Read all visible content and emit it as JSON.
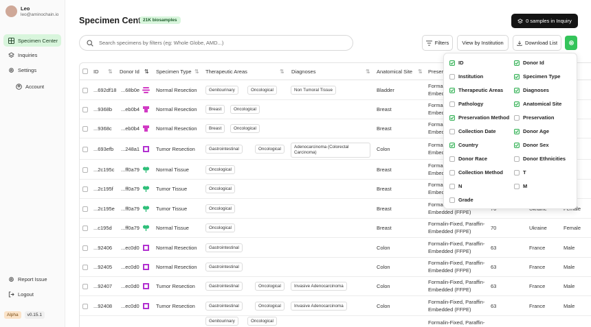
{
  "user": {
    "name": "Leo",
    "email": "leo@aminochain.io"
  },
  "nav": [
    {
      "label": "Specimen Center",
      "icon": "grid-icon",
      "active": true
    },
    {
      "label": "Inquiries",
      "icon": "layers-icon"
    },
    {
      "label": "Settings",
      "icon": "gear-icon"
    },
    {
      "label": "Account",
      "icon": "user-circle-icon"
    }
  ],
  "nav_bottom": [
    {
      "label": "Report Issue",
      "icon": "gear-icon"
    },
    {
      "label": "Logout",
      "icon": "logout-icon"
    }
  ],
  "footer": {
    "tag": "Alpha",
    "version": "v0.15.1"
  },
  "header": {
    "title": "Specimen Center",
    "badge": "21K biosamples",
    "inquiry_button": "0 samples in Inquiry"
  },
  "toolbar": {
    "search_placeholder": "Search specimens by filters (eg: Whole Globe, AMD...)",
    "filters": "Filters",
    "by_institution": "View by Institution",
    "download": "Download List"
  },
  "columns": [
    "ID",
    "Donor Id",
    "Specimen Type",
    "Therapeutic Areas",
    "Diagnoses",
    "Anatomical Site",
    "Preser"
  ],
  "rows": [
    {
      "id": "...692df18",
      "donor": "...68b0e",
      "organ": "ovary",
      "type": "Normal Resection",
      "areas": [
        "Genitourinary",
        "Oncological"
      ],
      "diagnosis": "Non Tumoral Tissue",
      "site": "Bladder",
      "pres": [
        "Formalin",
        "Embedd"
      ]
    },
    {
      "id": "...9368b",
      "donor": "...eb0b4",
      "organ": "stomach",
      "type": "Normal Resection",
      "areas": [
        "Breast",
        "Oncological"
      ],
      "diagnosis": "",
      "site": "Breast",
      "pres": [
        "Formalin",
        "Embedd"
      ]
    },
    {
      "id": "...9368c",
      "donor": "...eb0b4",
      "organ": "stomach",
      "type": "Normal Resection",
      "areas": [
        "Breast",
        "Oncological"
      ],
      "diagnosis": "",
      "site": "Breast",
      "pres": [
        "Formalin",
        "Embedd"
      ]
    },
    {
      "id": "...693efb",
      "donor": "...248a1",
      "organ": "colon",
      "type": "Tumor Resection",
      "areas": [
        "Gastrointestinal",
        "Oncological"
      ],
      "diagnosis": "Adenocarcinoma (Colorectal Carcinoma)",
      "site": "Colon",
      "pres": [
        "Formalin",
        "Embedd"
      ]
    },
    {
      "id": "...2c195c",
      "donor": "...ff0a79",
      "organ": "breast",
      "type": "Normal Tissue",
      "areas": [
        "Oncological"
      ],
      "diagnosis": "",
      "site": "Breast",
      "pres": [
        "Formalin",
        "Embedd"
      ]
    },
    {
      "id": "...2c195f",
      "donor": "...ff0a79",
      "organ": "breast",
      "type": "Tumor Tissue",
      "areas": [
        "Oncological"
      ],
      "diagnosis": "",
      "site": "Breast",
      "pres": [
        "Formalin",
        "Embedd"
      ]
    },
    {
      "id": "...2c195e",
      "donor": "...ff0a79",
      "organ": "breast",
      "type": "Tumor Tissue",
      "areas": [
        "Oncological"
      ],
      "diagnosis": "",
      "site": "Breast",
      "pres": [
        "Formalin-Fixed, Paraffin-",
        "Embedded (FFPE)"
      ],
      "age": "70",
      "country": "Ukraine",
      "sex": "Female"
    },
    {
      "id": "...c195d",
      "donor": "...ff0a79",
      "organ": "breast",
      "type": "Normal Tissue",
      "areas": [
        "Oncological"
      ],
      "diagnosis": "",
      "site": "Breast",
      "pres": [
        "Formalin-Fixed, Paraffin-",
        "Embedded (FFPE)"
      ],
      "age": "70",
      "country": "Ukraine",
      "sex": "Female"
    },
    {
      "id": "...92406",
      "donor": "...ec0d0",
      "organ": "colon",
      "type": "Normal Resection",
      "areas": [
        "Gastrointestinal"
      ],
      "diagnosis": "",
      "site": "Colon",
      "pres": [
        "Formalin-Fixed, Paraffin-",
        "Embedded (FFPE)"
      ],
      "age": "63",
      "country": "France",
      "sex": "Male"
    },
    {
      "id": "...92405",
      "donor": "...ec0d0",
      "organ": "colon",
      "type": "Normal Resection",
      "areas": [
        "Gastrointestinal"
      ],
      "diagnosis": "",
      "site": "Colon",
      "pres": [
        "Formalin-Fixed, Paraffin-",
        "Embedded (FFPE)"
      ],
      "age": "63",
      "country": "France",
      "sex": "Male"
    },
    {
      "id": "...92407",
      "donor": "...ec0d0",
      "organ": "colon",
      "type": "Tumor Resection",
      "areas": [
        "Gastrointestinal",
        "Oncological"
      ],
      "diagnosis": "Invasive Adenocarcinoma",
      "site": "Colon",
      "pres": [
        "Formalin-Fixed, Paraffin-",
        "Embedded (FFPE)"
      ],
      "age": "63",
      "country": "France",
      "sex": "Male"
    },
    {
      "id": "...92408",
      "donor": "...ec0d0",
      "organ": "colon",
      "type": "Tumor Resection",
      "areas": [
        "Gastrointestinal",
        "Oncological"
      ],
      "diagnosis": "Invasive Adenocarcinoma",
      "site": "Colon",
      "pres": [
        "Formalin-Fixed, Paraffin-",
        "Embedded (FFPE)"
      ],
      "age": "63",
      "country": "France",
      "sex": "Male"
    },
    {
      "id": "",
      "donor": "",
      "organ": "",
      "type": "",
      "areas": [
        "Genitourinary",
        "Oncological"
      ],
      "diagnosis": "",
      "site": "",
      "pres": [
        "Formalin-Fixed, Paraffin-",
        ""
      ]
    }
  ],
  "column_options": [
    {
      "label": "ID",
      "checked": true
    },
    {
      "label": "Donor Id",
      "checked": true
    },
    {
      "label": "Institution",
      "checked": false
    },
    {
      "label": "Specimen Type",
      "checked": true
    },
    {
      "label": "Therapeutic Areas",
      "checked": true
    },
    {
      "label": "Diagnoses",
      "checked": true
    },
    {
      "label": "Pathology",
      "checked": false
    },
    {
      "label": "Anatomical Site",
      "checked": true
    },
    {
      "label": "Preservation Method",
      "checked": true
    },
    {
      "label": "Preservation",
      "checked": false
    },
    {
      "label": "Collection Date",
      "checked": false
    },
    {
      "label": "Donor Age",
      "checked": true
    },
    {
      "label": "Country",
      "checked": true
    },
    {
      "label": "Donor Sex",
      "checked": true
    },
    {
      "label": "Donor Race",
      "checked": false
    },
    {
      "label": "Donor Ethnicities",
      "checked": false
    },
    {
      "label": "Collection Method",
      "checked": false
    },
    {
      "label": "T",
      "checked": false
    },
    {
      "label": "N",
      "checked": false
    },
    {
      "label": "M",
      "checked": false
    },
    {
      "label": "Grade",
      "checked": false
    }
  ],
  "colors": {
    "accent": "#34c45a",
    "accent_light": "#d8f5dc",
    "organ": "#d13ac4",
    "organ_alt": "#2fbf7a"
  }
}
